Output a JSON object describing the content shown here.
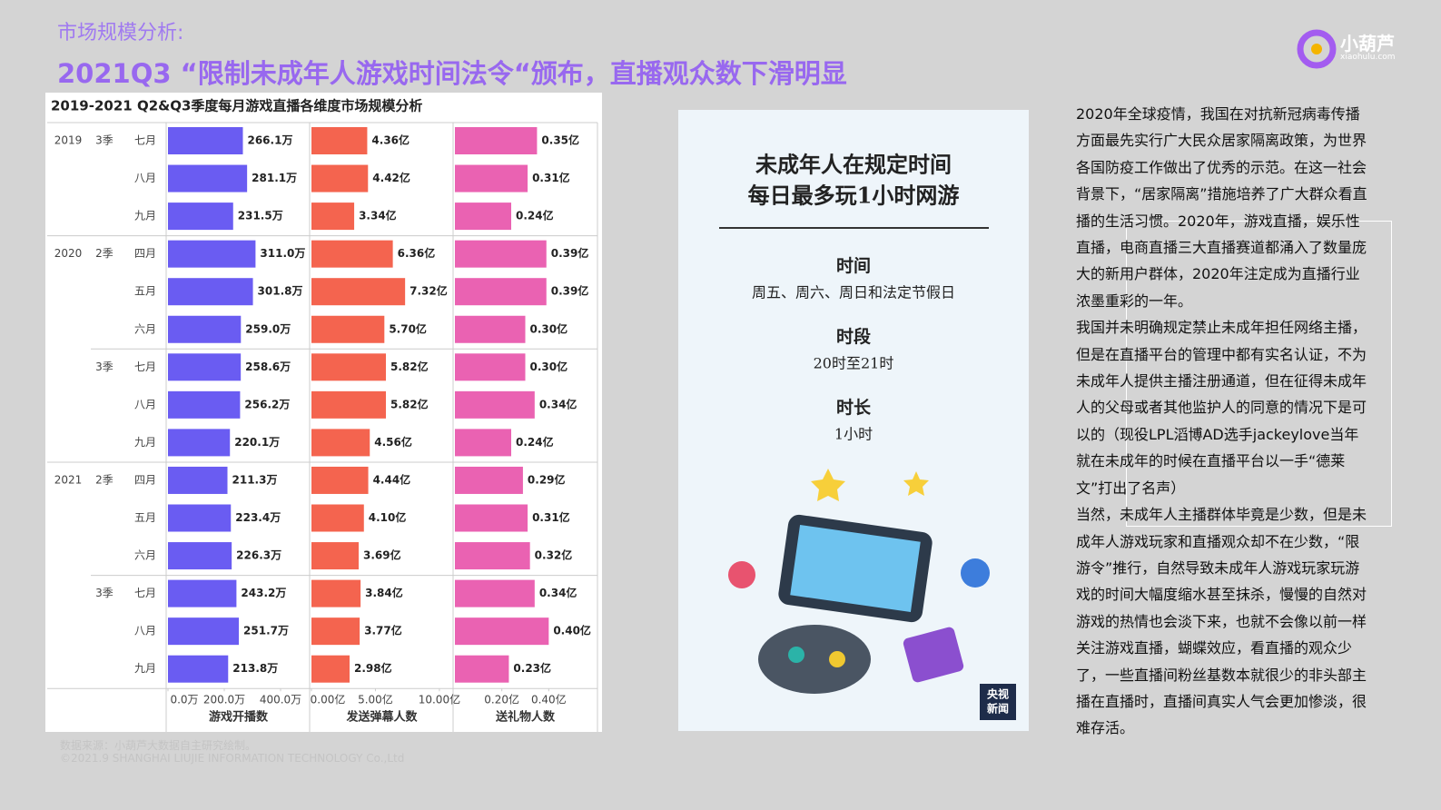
{
  "header": {
    "subtitle": "市场规模分析:",
    "title": "2021Q3 “限制未成年人游戏时间法令“颁布，直播观众数下滑明显",
    "logo": "小葫芦",
    "logo_url": "xiaohulu.com"
  },
  "chart_data": [
    {
      "type": "bar",
      "title": "2019-2021 Q2&Q3季度每月游戏直播各维度市场规模分析",
      "xlabel": "游戏开播数",
      "years": [
        "2019",
        null,
        null,
        "2020",
        null,
        null,
        null,
        null,
        null,
        "2021",
        null,
        null,
        null,
        null,
        null
      ],
      "quarters": [
        "3季",
        null,
        null,
        "2季",
        null,
        null,
        "3季",
        null,
        null,
        "2季",
        null,
        null,
        "3季",
        null,
        null
      ],
      "categories": [
        "七月",
        "八月",
        "九月",
        "四月",
        "五月",
        "六月",
        "七月",
        "八月",
        "九月",
        "四月",
        "五月",
        "六月",
        "七月",
        "八月",
        "九月"
      ],
      "values": [
        266.1,
        281.1,
        231.5,
        311.0,
        301.8,
        259.0,
        258.6,
        256.2,
        220.1,
        211.3,
        223.4,
        226.3,
        243.2,
        251.7,
        213.8
      ],
      "value_labels": [
        "266.1万",
        "281.1万",
        "231.5万",
        "311.0万",
        "301.8万",
        "259.0万",
        "258.6万",
        "256.2万",
        "220.1万",
        "211.3万",
        "223.4万",
        "226.3万",
        "243.2万",
        "251.7万",
        "213.8万"
      ],
      "color": "#6a5cf2",
      "xlim": [
        0,
        500
      ],
      "xticks": [
        {
          "value": 0,
          "label": "0.0万"
        },
        {
          "value": 200,
          "label": "200.0万"
        },
        {
          "value": 400,
          "label": "400.0万"
        }
      ]
    },
    {
      "type": "bar",
      "xlabel": "发送弹幕人数",
      "values": [
        4.36,
        4.42,
        3.34,
        6.36,
        7.32,
        5.7,
        5.82,
        5.82,
        4.56,
        4.44,
        4.1,
        3.69,
        3.84,
        3.77,
        2.98
      ],
      "value_labels": [
        "4.36亿",
        "4.42亿",
        "3.34亿",
        "6.36亿",
        "7.32亿",
        "5.70亿",
        "5.82亿",
        "5.82亿",
        "4.56亿",
        "4.44亿",
        "4.10亿",
        "3.69亿",
        "3.84亿",
        "3.77亿",
        "2.98亿"
      ],
      "color": "#f4644f",
      "xlim": [
        0,
        11
      ],
      "xticks": [
        {
          "value": 0,
          "label": "0.00亿"
        },
        {
          "value": 5,
          "label": "5.00亿"
        },
        {
          "value": 10,
          "label": "10.00亿"
        }
      ]
    },
    {
      "type": "bar",
      "xlabel": "送礼物人数",
      "values": [
        0.35,
        0.31,
        0.24,
        0.39,
        0.39,
        0.3,
        0.3,
        0.34,
        0.24,
        0.29,
        0.31,
        0.32,
        0.34,
        0.4,
        0.23
      ],
      "value_labels": [
        "0.35亿",
        "0.31亿",
        "0.24亿",
        "0.39亿",
        "0.39亿",
        "0.30亿",
        "0.30亿",
        "0.34亿",
        "0.24亿",
        "0.29亿",
        "0.31亿",
        "0.32亿",
        "0.34亿",
        "0.40亿",
        "0.23亿"
      ],
      "color": "#ea62b2",
      "xlim": [
        0,
        0.6
      ],
      "xticks": [
        {
          "value": 0.2,
          "label": "0.20亿"
        },
        {
          "value": 0.4,
          "label": "0.40亿"
        }
      ]
    }
  ],
  "source": {
    "note": "数据来源：小葫芦大数据自主研究绘制。",
    "copyright": "©2021.9 SHANGHAI LIUJIE INFORMATION TECHNOLOGY Co.,Ltd"
  },
  "poster": {
    "title_lines": [
      "未成年人在规定时间",
      "每日最多玩1小时网游"
    ],
    "items": [
      {
        "label": "时间",
        "text": "周五、周六、周日和法定节假日"
      },
      {
        "label": "时段",
        "text": "20时至21时"
      },
      {
        "label": "时长",
        "text": "1小时"
      }
    ],
    "badge": [
      "央视",
      "新闻"
    ]
  },
  "article": {
    "paragraphs": [
      "2020年全球疫情，我国在对抗新冠病毒传播方面最先实行广大民众居家隔离政策，为世界各国防疫工作做出了优秀的示范。在这一社会背景下，“居家隔离”措施培养了广大群众看直播的生活习惯。2020年，游戏直播，娱乐性直播，电商直播三大直播赛道都涌入了数量庞大的新用户群体，2020年注定成为直播行业浓墨重彩的一年。",
      "我国并未明确规定禁止未成年担任网络主播，但是在直播平台的管理中都有实名认证，不为未成年人提供主播注册通道，但在征得未成年人的父母或者其他监护人的同意的情况下是可以的（现役LPL滔博AD选手jackeylove当年就在未成年的时候在直播平台以一手“德莱文”打出了名声）",
      "当然，未成年人主播群体毕竟是少数，但是未成年人游戏玩家和直播观众却不在少数，“限游令”推行，自然导致未成年人游戏玩家玩游戏的时间大幅度缩水甚至抹杀，慢慢的自然对游戏的热情也会淡下来，也就不会像以前一样关注游戏直播，蝴蝶效应，看直播的观众少了，一些直播间粉丝基数本就很少的非头部主播在直播时，直播间真实人气会更加惨淡，很难存活。"
    ]
  }
}
